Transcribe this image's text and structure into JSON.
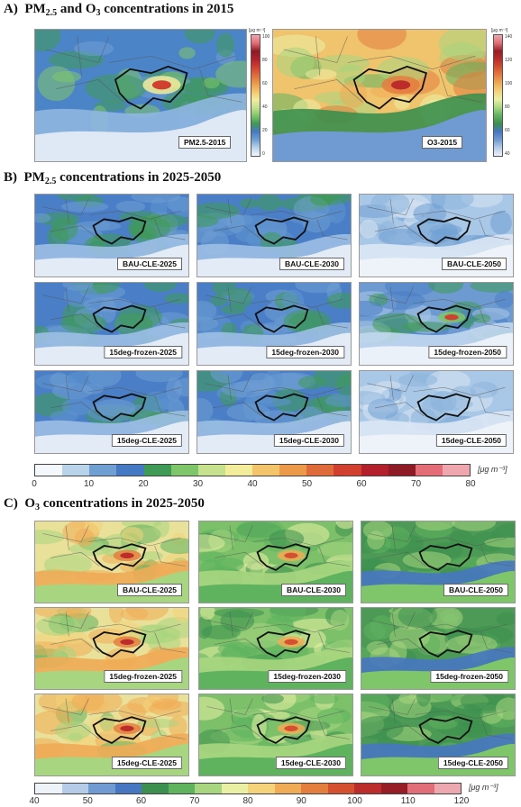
{
  "sections": {
    "a": {
      "prefix": "A)",
      "t1": "PM",
      "sub1": "2.5",
      "t2": " and O",
      "sub2": "3",
      "t3": " concentrations in 2015"
    },
    "b": {
      "prefix": "B)",
      "t1": "PM",
      "sub1": "2.5",
      "t2": " concentrations in 2025-2050"
    },
    "c": {
      "prefix": "C)",
      "t1": "O",
      "sub1": "3",
      "t2": " concentrations in 2025-2050"
    }
  },
  "panelA": {
    "pm_label": "PM2.5-2015",
    "o3_label": "O3-2015",
    "pm_scale": {
      "unit": "[μg m⁻³]",
      "ticks": [
        "100",
        "80",
        "60",
        "40",
        "20",
        "0"
      ]
    },
    "o3_scale": {
      "unit": "[μg m⁻³]",
      "ticks": [
        "140",
        "120",
        "100",
        "80",
        "60",
        "40"
      ]
    }
  },
  "panelB": {
    "labels": [
      "BAU-CLE-2025",
      "BAU-CLE-2030",
      "BAU-CLE-2050",
      "15deg-frozen-2025",
      "15deg-frozen-2030",
      "15deg-frozen-2050",
      "15deg-CLE-2025",
      "15deg-CLE-2030",
      "15deg-CLE-2050"
    ],
    "scale": {
      "unit": "[μg m⁻³]",
      "ticks": [
        "0",
        "10",
        "20",
        "30",
        "40",
        "50",
        "60",
        "70",
        "80"
      ]
    }
  },
  "panelC": {
    "labels": [
      "BAU-CLE-2025",
      "BAU-CLE-2030",
      "BAU-CLE-2050",
      "15deg-frozen-2025",
      "15deg-frozen-2030",
      "15deg-frozen-2050",
      "15deg-CLE-2025",
      "15deg-CLE-2030",
      "15deg-CLE-2050"
    ],
    "scale": {
      "unit": "[μg m⁻³]",
      "ticks": [
        "40",
        "50",
        "60",
        "70",
        "80",
        "90",
        "100",
        "110",
        "120"
      ]
    }
  },
  "colors": {
    "pm_scale": [
      "#f4f7fb",
      "#b9d3ea",
      "#6f9fd3",
      "#4679c4",
      "#3f9a55",
      "#7fc66a",
      "#c6e28f",
      "#f3ec9b",
      "#f4c46a",
      "#ec9a4a",
      "#e06b3a",
      "#d1402f",
      "#b3202b",
      "#8e1a25",
      "#e46c76",
      "#f0a6ae"
    ],
    "o3_scale": [
      "#eef3fa",
      "#b5cce8",
      "#6f9bd2",
      "#4777c1",
      "#3c8f4e",
      "#5fb25e",
      "#a8d680",
      "#e9f0a4",
      "#f4d37a",
      "#f0ab56",
      "#e47e3f",
      "#d5502f",
      "#bb2c2a",
      "#961d26",
      "#e06d77",
      "#eda7ae"
    ],
    "accent_outline": "#111111"
  }
}
